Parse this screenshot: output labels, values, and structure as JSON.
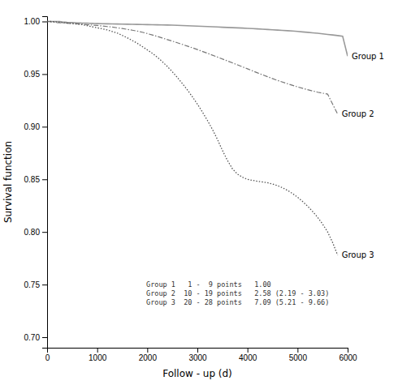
{
  "chart_data": {
    "type": "line",
    "xlabel": "Follow - up (d)",
    "ylabel": "Survival function",
    "xlim": [
      0,
      6000
    ],
    "ylim": [
      0.69,
      1.005
    ],
    "xticks": [
      0,
      1000,
      2000,
      3000,
      4000,
      5000,
      6000
    ],
    "yticks": [
      {
        "value": 0.7,
        "label": "0.70"
      },
      0.75,
      {
        "value": 0.8,
        "label": "0.80"
      },
      0.85,
      {
        "value": 0.9,
        "label": "0.90"
      },
      0.95,
      {
        "value": 1.0,
        "label": "1.00"
      }
    ],
    "grid": false,
    "annotations": [
      "Group 1   1 -  9 points   1.00",
      "Group 2  10 - 19 points   2.58 (2.19 - 3.03)",
      "Group 3  20 - 28 points   7.09 (5.21 - 9.66)"
    ],
    "series": [
      {
        "name": "Group 1",
        "color": "#999999",
        "line_style": "solid",
        "x": [
          0,
          50,
          100,
          150,
          200,
          250,
          300,
          350,
          400,
          450,
          500,
          550,
          600,
          650,
          700,
          750,
          800,
          850,
          900,
          950,
          1000,
          1100,
          1200,
          1300,
          1400,
          1500,
          1600,
          1700,
          1800,
          1900,
          2000,
          2100,
          2200,
          2300,
          2400,
          2500,
          2600,
          2700,
          2800,
          2900,
          3000,
          3100,
          3200,
          3300,
          3400,
          3500,
          3600,
          3700,
          3800,
          3900,
          4000,
          4100,
          4200,
          4300,
          4400,
          4500,
          4600,
          4700,
          4800,
          4900,
          5000,
          5100,
          5200,
          5300,
          5400,
          5500,
          5600,
          5700,
          5800,
          5900,
          6000
        ],
        "values": [
          1.0,
          1.0,
          1.0,
          1.0,
          1.0,
          1.0,
          0.9995,
          0.9993,
          0.9991,
          0.999,
          0.9989,
          0.9988,
          0.9987,
          0.9986,
          0.9985,
          0.9984,
          0.9984,
          0.9983,
          0.9982,
          0.9981,
          0.998,
          0.9979,
          0.9978,
          0.9977,
          0.9976,
          0.9975,
          0.9974,
          0.9973,
          0.9972,
          0.9971,
          0.997,
          0.9969,
          0.9968,
          0.9967,
          0.9966,
          0.9965,
          0.9963,
          0.9962,
          0.996,
          0.9958,
          0.9956,
          0.9954,
          0.9952,
          0.995,
          0.9948,
          0.9945,
          0.9943,
          0.9941,
          0.9939,
          0.9937,
          0.9935,
          0.9933,
          0.993,
          0.9927,
          0.9924,
          0.9921,
          0.9918,
          0.9915,
          0.9912,
          0.9909,
          0.9905,
          0.9901,
          0.9897,
          0.9892,
          0.9888,
          0.9882,
          0.9877,
          0.9872,
          0.9866,
          0.986,
          0.967
        ]
      },
      {
        "name": "Group 2",
        "color": "#777777",
        "line_style": "dashdot",
        "x": [
          0,
          50,
          100,
          200,
          300,
          400,
          500,
          600,
          700,
          800,
          900,
          1000,
          1100,
          1200,
          1300,
          1400,
          1500,
          1600,
          1700,
          1800,
          1900,
          2000,
          2100,
          2200,
          2300,
          2400,
          2500,
          2600,
          2700,
          2800,
          2900,
          3000,
          3200,
          3400,
          3600,
          3800,
          4000,
          4200,
          4400,
          4600,
          4800,
          5000,
          5200,
          5400,
          5600,
          5800
        ],
        "values": [
          1.0,
          1.0,
          0.9995,
          0.999,
          0.9987,
          0.9984,
          0.9981,
          0.9978,
          0.9974,
          0.997,
          0.9966,
          0.9962,
          0.9957,
          0.9952,
          0.9947,
          0.994,
          0.9933,
          0.9925,
          0.9917,
          0.9908,
          0.9898,
          0.9885,
          0.9872,
          0.9858,
          0.9843,
          0.9828,
          0.9813,
          0.9798,
          0.9782,
          0.9766,
          0.975,
          0.9733,
          0.9698,
          0.9662,
          0.9625,
          0.9588,
          0.955,
          0.9512,
          0.9475,
          0.944,
          0.9408,
          0.9378,
          0.9352,
          0.9328,
          0.931,
          0.912
        ]
      },
      {
        "name": "Group 3",
        "color": "#555555",
        "line_style": "dotted",
        "x": [
          0,
          100,
          200,
          300,
          400,
          500,
          600,
          700,
          800,
          900,
          1000,
          1200,
          1400,
          1600,
          1800,
          2000,
          2100,
          2200,
          2300,
          2400,
          2500,
          2600,
          2700,
          2800,
          2900,
          3000,
          3100,
          3200,
          3300,
          3400,
          3500,
          3600,
          3700,
          3800,
          3900,
          4000,
          4100,
          4200,
          4300,
          4400,
          4500,
          4600,
          4700,
          4800,
          4900,
          5000,
          5100,
          5200,
          5300,
          5400,
          5500,
          5600,
          5700,
          5800
        ],
        "values": [
          1.0,
          1.0,
          0.9995,
          0.999,
          0.9985,
          0.998,
          0.9975,
          0.997,
          0.996,
          0.995,
          0.994,
          0.992,
          0.989,
          0.9845,
          0.9793,
          0.973,
          0.9698,
          0.966,
          0.9618,
          0.9572,
          0.9522,
          0.9468,
          0.941,
          0.935,
          0.9285,
          0.9215,
          0.914,
          0.906,
          0.8975,
          0.888,
          0.8775,
          0.868,
          0.86,
          0.855,
          0.852,
          0.85,
          0.849,
          0.8482,
          0.8475,
          0.8468,
          0.8455,
          0.844,
          0.842,
          0.8395,
          0.8365,
          0.833,
          0.829,
          0.8245,
          0.8195,
          0.814,
          0.8075,
          0.8,
          0.79,
          0.778
        ]
      }
    ]
  }
}
